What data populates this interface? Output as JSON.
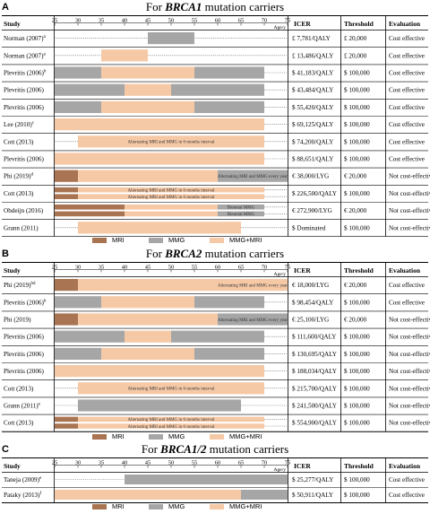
{
  "colors": {
    "mri": "#a97452",
    "mmg": "#a6a6a6",
    "both": "#f6c9a6",
    "rowbg": "#e7e7e7"
  },
  "headers": {
    "study": "Study",
    "age": "Age/y",
    "icer": "ICER",
    "threshold": "Threshold",
    "evaluation": "Evaluation"
  },
  "legend": {
    "mri": "MRI",
    "mmg": "MMG",
    "both": "MMG+MRI"
  },
  "chart_data": [
    {
      "type": "gantt",
      "panel": "A",
      "title_prefix": "For ",
      "title_bold": "BRCA1",
      "title_suffix": " mutation carriers",
      "x_ticks": [
        25,
        30,
        35,
        40,
        45,
        50,
        55,
        60,
        65,
        70,
        75
      ],
      "rows": [
        {
          "study": "Norman (2007)",
          "sup": "a",
          "icer": "£ 7,781/QALY",
          "threshold": "£ 20,000",
          "evaluation": "Cost effective",
          "lanes": [
            [
              {
                "s": 45,
                "e": 55,
                "k": "mmg"
              }
            ]
          ]
        },
        {
          "study": "Norman (2007)",
          "sup": "a",
          "icer": "£ 13,486/QALY",
          "threshold": "£ 20,000",
          "evaluation": "Cost effective",
          "lanes": [
            [
              {
                "s": 35,
                "e": 45,
                "k": "both"
              }
            ]
          ]
        },
        {
          "study": "Plevritis (2006)",
          "sup": "b",
          "icer": "$ 41,183/QALY",
          "threshold": "$ 100,000",
          "evaluation": "Cost effective",
          "lanes": [
            [
              {
                "s": 25,
                "e": 35,
                "k": "mmg"
              },
              {
                "s": 35,
                "e": 55,
                "k": "both"
              },
              {
                "s": 55,
                "e": 70,
                "k": "mmg"
              }
            ]
          ]
        },
        {
          "study": "Plevritis (2006)",
          "sup": "",
          "icer": "$ 43,484/QALY",
          "threshold": "$ 100,000",
          "evaluation": "Cost effective",
          "lanes": [
            [
              {
                "s": 25,
                "e": 40,
                "k": "mmg"
              },
              {
                "s": 40,
                "e": 50,
                "k": "both"
              },
              {
                "s": 50,
                "e": 70,
                "k": "mmg"
              }
            ]
          ]
        },
        {
          "study": "Plevritis (2006)",
          "sup": "",
          "icer": "$ 55,420/QALY",
          "threshold": "$ 100,000",
          "evaluation": "Cost effective",
          "lanes": [
            [
              {
                "s": 25,
                "e": 35,
                "k": "mmg"
              },
              {
                "s": 35,
                "e": 55,
                "k": "both"
              },
              {
                "s": 55,
                "e": 70,
                "k": "mmg"
              }
            ]
          ]
        },
        {
          "study": "Lee (2010)",
          "sup": "c",
          "icer": "$ 69,125/QALY",
          "threshold": "$ 100,000",
          "evaluation": "Cost effective",
          "lanes": [
            [
              {
                "s": 25,
                "e": 70,
                "k": "both"
              }
            ]
          ]
        },
        {
          "study": "Cott (2013)",
          "sup": "",
          "icer": "$ 74,200/QALY",
          "threshold": "$ 100,000",
          "evaluation": "Cost effective",
          "lanes": [
            [
              {
                "s": 30,
                "e": 70,
                "k": "both",
                "t": "Alternating MRI and MMG in 6 months interval"
              }
            ]
          ]
        },
        {
          "study": "Plevritis (2006)",
          "sup": "",
          "icer": "$ 88,651/QALY",
          "threshold": "$ 100,000",
          "evaluation": "Cost effective",
          "lanes": [
            [
              {
                "s": 25,
                "e": 70,
                "k": "both"
              }
            ]
          ]
        },
        {
          "study": "Phi (2019)",
          "sup": "d",
          "icer": "€ 38,000/LYG",
          "threshold": "€ 20,000",
          "evaluation": "Not cost-effective",
          "lanes": [
            [
              {
                "s": 25,
                "e": 30,
                "k": "mri"
              },
              {
                "s": 30,
                "e": 60,
                "k": "both"
              },
              {
                "s": 60,
                "e": 75,
                "k": "mmg",
                "t": "Alternating MRI and MMG every year"
              }
            ]
          ]
        },
        {
          "study": "Cott (2013)",
          "sup": "",
          "icer": "$ 226,500/QALY",
          "threshold": "$ 100,000",
          "evaluation": "Not cost-effective",
          "lanes": [
            [
              {
                "s": 25,
                "e": 30,
                "k": "mri"
              },
              {
                "s": 30,
                "e": 70,
                "k": "both",
                "t": "Alternating MRI and MMG in 6 months interval"
              }
            ],
            [
              {
                "s": 25,
                "e": 30,
                "k": "mri"
              },
              {
                "s": 30,
                "e": 70,
                "k": "both",
                "t": "Alternating MRI and MMG in 6 months interval"
              }
            ]
          ]
        },
        {
          "study": "Obdeijn (2016)",
          "sup": "",
          "icer": "€ 272,900/LYG",
          "threshold": "€ 20,000",
          "evaluation": "Not cost-effective",
          "lanes": [
            [
              {
                "s": 25,
                "e": 40,
                "k": "mri"
              },
              {
                "s": 40,
                "e": 60,
                "k": "both"
              },
              {
                "s": 60,
                "e": 70,
                "k": "mmg",
                "t": "Biennial MMG"
              }
            ],
            [
              {
                "s": 25,
                "e": 40,
                "k": "mri"
              },
              {
                "s": 40,
                "e": 60,
                "k": "both"
              },
              {
                "s": 60,
                "e": 70,
                "k": "mmg",
                "t": "Biennial MMG"
              }
            ]
          ]
        },
        {
          "study": "Grann (2011)",
          "sup": "",
          "icer": "$ Dominated",
          "threshold": "$ 100,000",
          "evaluation": "Not cost-effective",
          "lanes": [
            [
              {
                "s": 30,
                "e": 65,
                "k": "both"
              }
            ]
          ]
        }
      ]
    },
    {
      "type": "gantt",
      "panel": "B",
      "title_prefix": "For ",
      "title_bold": "BRCA2",
      "title_suffix": " mutation carriers",
      "x_ticks": [
        25,
        30,
        35,
        40,
        45,
        50,
        55,
        60,
        65,
        70,
        75
      ],
      "rows": [
        {
          "study": "Phi (2019)",
          "sup": "bd",
          "icer": "€ 18,000/LYG",
          "threshold": "€ 20,000",
          "evaluation": "Cost effective",
          "lanes": [
            [
              {
                "s": 25,
                "e": 30,
                "k": "mri"
              },
              {
                "s": 30,
                "e": 60,
                "k": "both"
              },
              {
                "s": 60,
                "e": 75,
                "k": "both",
                "t": "Alternating MRI and MMG every year"
              }
            ]
          ]
        },
        {
          "study": "Plevritis (2006)",
          "sup": "b",
          "icer": "$ 98,454/QALY",
          "threshold": "$ 100,000",
          "evaluation": "Cost effective",
          "lanes": [
            [
              {
                "s": 25,
                "e": 35,
                "k": "mmg"
              },
              {
                "s": 35,
                "e": 55,
                "k": "both"
              },
              {
                "s": 55,
                "e": 70,
                "k": "mmg"
              }
            ]
          ]
        },
        {
          "study": "Phi (2019)",
          "sup": "",
          "icer": "€ 25,100/LYG",
          "threshold": "€ 20,000",
          "evaluation": "Not cost-effective",
          "lanes": [
            [
              {
                "s": 25,
                "e": 30,
                "k": "mri"
              },
              {
                "s": 30,
                "e": 60,
                "k": "both"
              },
              {
                "s": 60,
                "e": 75,
                "k": "mmg",
                "t": "Alternating MRI and MMG every year"
              }
            ]
          ]
        },
        {
          "study": "Plevritis (2006)",
          "sup": "",
          "icer": "$ 111,600/QALY",
          "threshold": "$ 100,000",
          "evaluation": "Not cost-effective",
          "lanes": [
            [
              {
                "s": 25,
                "e": 40,
                "k": "mmg"
              },
              {
                "s": 40,
                "e": 50,
                "k": "both"
              },
              {
                "s": 50,
                "e": 70,
                "k": "mmg"
              }
            ]
          ]
        },
        {
          "study": "Plevritis (2006)",
          "sup": "",
          "icer": "$ 130,695/QALY",
          "threshold": "$ 100,000",
          "evaluation": "Not cost-effective",
          "lanes": [
            [
              {
                "s": 25,
                "e": 35,
                "k": "mmg"
              },
              {
                "s": 35,
                "e": 55,
                "k": "both"
              },
              {
                "s": 55,
                "e": 70,
                "k": "mmg"
              }
            ]
          ]
        },
        {
          "study": "Plevritis (2006)",
          "sup": "",
          "icer": "$ 188,034/QALY",
          "threshold": "$ 100,000",
          "evaluation": "Not cost-effective",
          "lanes": [
            [
              {
                "s": 25,
                "e": 70,
                "k": "both"
              }
            ]
          ]
        },
        {
          "study": "Cott (2013)",
          "sup": "",
          "icer": "$ 215,700/QALY",
          "threshold": "$ 100,000",
          "evaluation": "Not cost-effective",
          "lanes": [
            [
              {
                "s": 30,
                "e": 70,
                "k": "both",
                "t": "Alternating MRI and MMG in 6 months interval"
              }
            ]
          ]
        },
        {
          "study": "Grann (2011)",
          "sup": "e",
          "icer": "$ 241,500/QALY",
          "threshold": "$ 100,000",
          "evaluation": "Not cost-effective",
          "lanes": [
            [
              {
                "s": 30,
                "e": 65,
                "k": "mmg"
              }
            ]
          ]
        },
        {
          "study": "Cott (2013)",
          "sup": "",
          "icer": "$ 554,900/QALY",
          "threshold": "$ 100,000",
          "evaluation": "Not cost-effective",
          "lanes": [
            [
              {
                "s": 25,
                "e": 30,
                "k": "mri"
              },
              {
                "s": 30,
                "e": 70,
                "k": "both",
                "t": "Alternating MRI and MMG in 6 months interval"
              }
            ],
            [
              {
                "s": 25,
                "e": 30,
                "k": "mri"
              },
              {
                "s": 30,
                "e": 70,
                "k": "both",
                "t": "Alternating MRI and MMG in 6 months interval"
              }
            ]
          ]
        }
      ]
    },
    {
      "type": "gantt",
      "panel": "C",
      "title_prefix": "For ",
      "title_bold": "BRCA1/2",
      "title_suffix": " mutation carriers",
      "x_ticks": [
        25,
        30,
        35,
        40,
        45,
        50,
        55,
        60,
        65,
        70,
        75
      ],
      "rows": [
        {
          "study": "Taneja (2009)",
          "sup": "e",
          "icer": "$ 25,277/QALY",
          "threshold": "$ 100,000",
          "evaluation": "Cost effective",
          "lanes": [
            [
              {
                "s": 40,
                "e": 75,
                "k": "mmg"
              }
            ]
          ]
        },
        {
          "study": "Pataky (2013)",
          "sup": "f",
          "icer": "$ 50,911/QALY",
          "threshold": "$ 100,000",
          "evaluation": "Cost effective",
          "lanes": [
            [
              {
                "s": 25,
                "e": 65,
                "k": "both"
              },
              {
                "s": 65,
                "e": 75,
                "k": "mmg"
              }
            ]
          ]
        }
      ]
    }
  ]
}
